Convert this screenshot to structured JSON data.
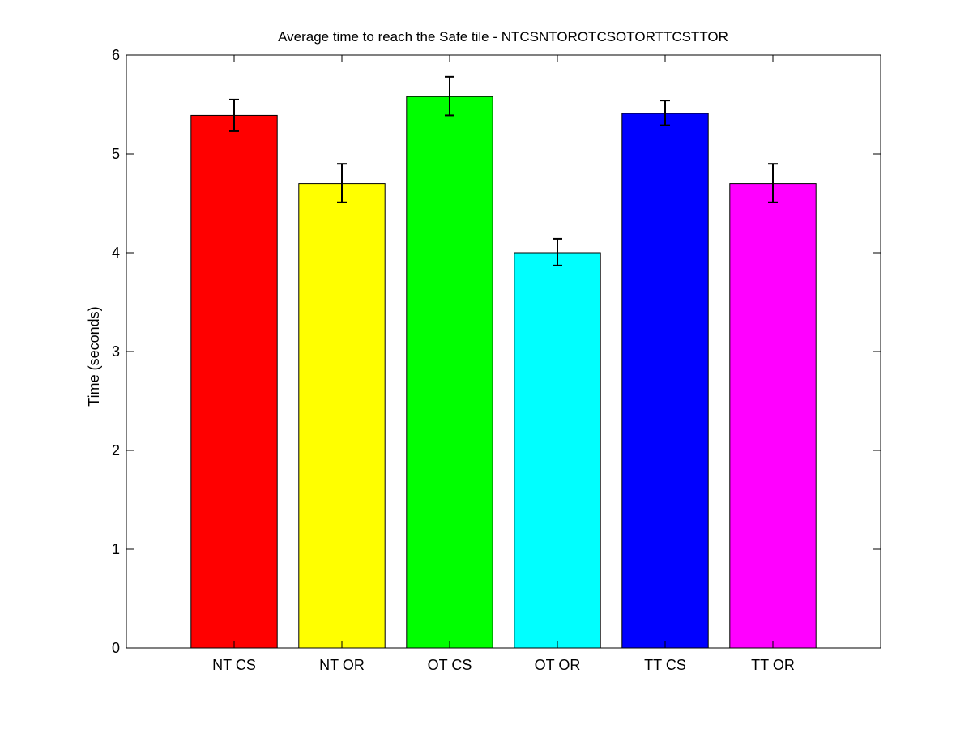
{
  "chart_data": {
    "type": "bar",
    "title": "Average time to reach the Safe tile - NTCSNTOROTCSOTORTTCSTTOR",
    "xlabel": "",
    "ylabel": "Time (seconds)",
    "ylim": [
      0,
      6
    ],
    "yticks": [
      0,
      1,
      2,
      3,
      4,
      5,
      6
    ],
    "grid": false,
    "legend": "none",
    "categories": [
      "NT CS",
      "NT OR",
      "OT CS",
      "OT OR",
      "TT CS",
      "TT OR"
    ],
    "values": [
      5.39,
      4.7,
      5.58,
      4.0,
      5.41,
      4.7
    ],
    "error_low": [
      5.23,
      4.51,
      5.39,
      3.87,
      5.29,
      4.51
    ],
    "error_high": [
      5.55,
      4.9,
      5.78,
      4.14,
      5.54,
      4.9
    ],
    "colors": [
      "#ff0000",
      "#ffff00",
      "#00ff00",
      "#00ffff",
      "#0000ff",
      "#ff00ff"
    ]
  }
}
